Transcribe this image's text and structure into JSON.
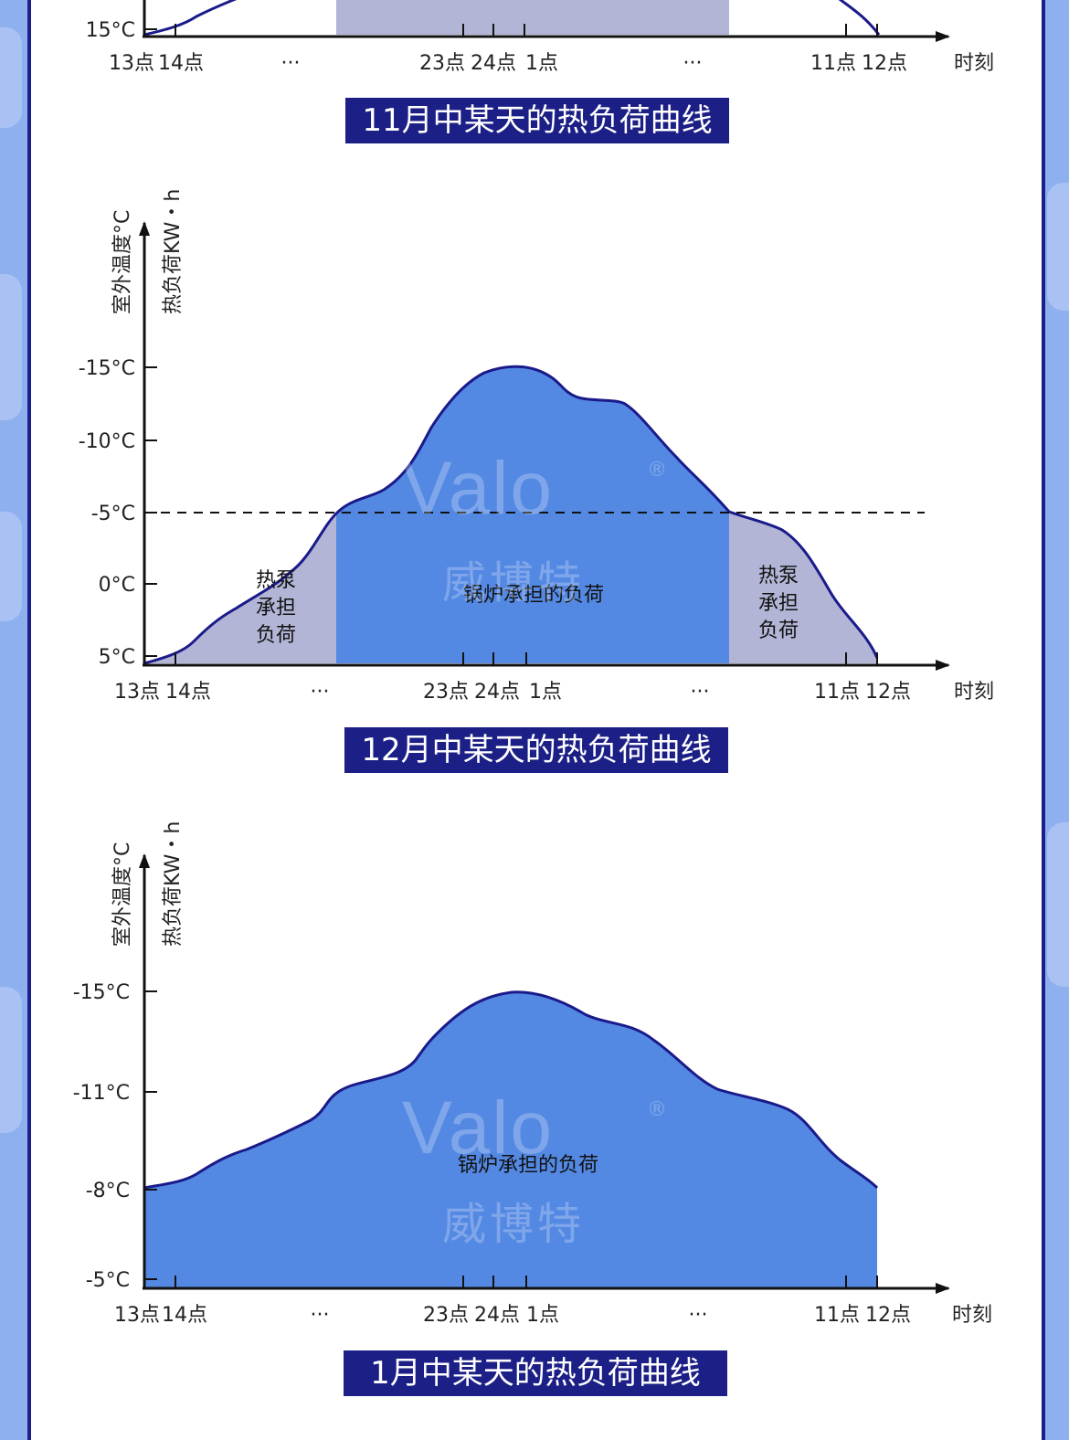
{
  "colors": {
    "background": "#8fb0ef",
    "border": "#1a1f8c",
    "title_bg": "#1c1f86",
    "boiler_fill": "#5489e3",
    "heatpump_fill": "#b2b5d5",
    "curve_stroke": "#1a1a8a",
    "axis": "#111111"
  },
  "watermark": {
    "en": "Valo",
    "cn": "威博特",
    "reg": "®"
  },
  "charts": [
    {
      "title": "11月中某天的热负荷曲线",
      "x_axis_label": "时刻",
      "x_ticks": [
        "13点",
        "14点",
        "23点",
        "24点",
        "1点",
        "11点",
        "12点"
      ],
      "ellipsis": "···",
      "y_ticks_visible": [
        "15°C"
      ]
    },
    {
      "title": "12月中某天的热负荷曲线",
      "y_axis_label_1": "室外温度°C",
      "y_axis_label_2": "热负荷KW・h",
      "x_axis_label": "时刻",
      "x_ticks": [
        "13点",
        "14点",
        "23点",
        "24点",
        "1点",
        "11点",
        "12点"
      ],
      "ellipsis": "···",
      "y_ticks": [
        "-15°C",
        "-10°C",
        "-5°C",
        "0°C",
        "5°C"
      ],
      "threshold_line": "-5°C",
      "heatpump_label_lines": [
        "热泵",
        "承担",
        "负荷"
      ],
      "boiler_label": "锅炉承担的负荷"
    },
    {
      "title": "1月中某天的热负荷曲线",
      "y_axis_label_1": "室外温度°C",
      "y_axis_label_2": "热负荷KW・h",
      "x_axis_label": "时刻",
      "x_ticks": [
        "13点",
        "14点",
        "23点",
        "24点",
        "1点",
        "11点",
        "12点"
      ],
      "ellipsis": "···",
      "y_ticks": [
        "-15°C",
        "-11°C",
        "-8°C",
        "-5°C"
      ],
      "boiler_label": "锅炉承担的负荷"
    }
  ]
}
